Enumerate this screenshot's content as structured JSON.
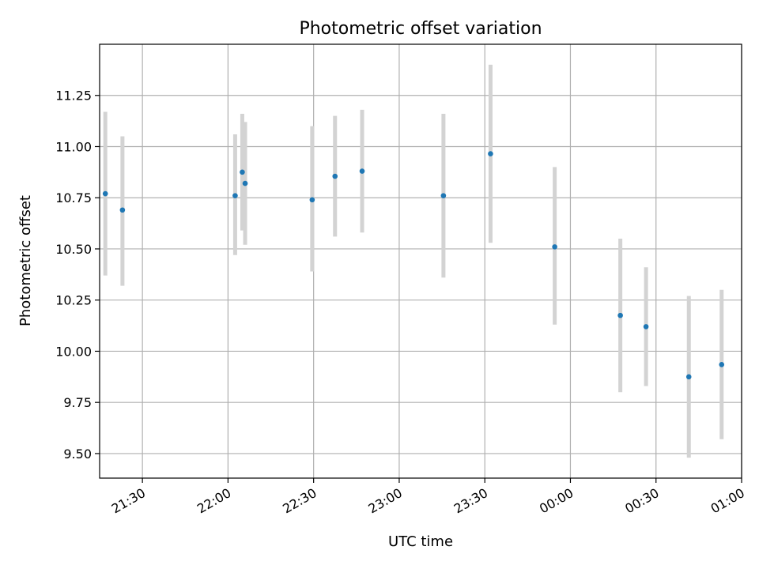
{
  "chart_data": {
    "type": "scatter",
    "title": "Photometric offset variation",
    "xlabel": "UTC time",
    "ylabel": "Photometric offset",
    "x_axis": "time",
    "xlim": [
      "2000-01-01T21:15:00",
      "2000-01-02T01:00:00"
    ],
    "ylim": [
      9.38,
      11.5
    ],
    "grid": true,
    "x_ticks": [
      {
        "value": "2000-01-01T21:30:00",
        "label": "21:30"
      },
      {
        "value": "2000-01-01T22:00:00",
        "label": "22:00"
      },
      {
        "value": "2000-01-01T22:30:00",
        "label": "22:30"
      },
      {
        "value": "2000-01-01T23:00:00",
        "label": "23:00"
      },
      {
        "value": "2000-01-01T23:30:00",
        "label": "23:30"
      },
      {
        "value": "2000-01-02T00:00:00",
        "label": "00:00"
      },
      {
        "value": "2000-01-02T00:30:00",
        "label": "00:30"
      },
      {
        "value": "2000-01-02T01:00:00",
        "label": "01:00"
      }
    ],
    "y_ticks": [
      {
        "value": 9.5,
        "label": "9.50"
      },
      {
        "value": 9.75,
        "label": "9.75"
      },
      {
        "value": 10.0,
        "label": "10.00"
      },
      {
        "value": 10.25,
        "label": "10.25"
      },
      {
        "value": 10.5,
        "label": "10.50"
      },
      {
        "value": 10.75,
        "label": "10.75"
      },
      {
        "value": 11.0,
        "label": "11.00"
      },
      {
        "value": 11.25,
        "label": "11.25"
      }
    ],
    "points": [
      {
        "x": "2000-01-01T21:17:00",
        "y": 10.77,
        "ylow": 10.37,
        "yhigh": 11.17
      },
      {
        "x": "2000-01-01T21:23:00",
        "y": 10.69,
        "ylow": 10.32,
        "yhigh": 11.05
      },
      {
        "x": "2000-01-01T22:02:30",
        "y": 10.76,
        "ylow": 10.47,
        "yhigh": 11.06
      },
      {
        "x": "2000-01-01T22:05:00",
        "y": 10.875,
        "ylow": 10.59,
        "yhigh": 11.16
      },
      {
        "x": "2000-01-01T22:06:00",
        "y": 10.82,
        "ylow": 10.52,
        "yhigh": 11.12
      },
      {
        "x": "2000-01-01T22:29:30",
        "y": 10.74,
        "ylow": 10.39,
        "yhigh": 11.1
      },
      {
        "x": "2000-01-01T22:37:30",
        "y": 10.855,
        "ylow": 10.56,
        "yhigh": 11.15
      },
      {
        "x": "2000-01-01T22:47:00",
        "y": 10.88,
        "ylow": 10.58,
        "yhigh": 11.18
      },
      {
        "x": "2000-01-01T23:15:30",
        "y": 10.76,
        "ylow": 10.36,
        "yhigh": 11.16
      },
      {
        "x": "2000-01-01T23:32:00",
        "y": 10.965,
        "ylow": 10.53,
        "yhigh": 11.4
      },
      {
        "x": "2000-01-01T23:54:30",
        "y": 10.51,
        "ylow": 10.13,
        "yhigh": 10.9
      },
      {
        "x": "2000-01-02T00:17:30",
        "y": 10.175,
        "ylow": 9.8,
        "yhigh": 10.55
      },
      {
        "x": "2000-01-02T00:26:30",
        "y": 10.12,
        "ylow": 9.83,
        "yhigh": 10.41
      },
      {
        "x": "2000-01-02T00:41:30",
        "y": 9.875,
        "ylow": 9.48,
        "yhigh": 10.27
      },
      {
        "x": "2000-01-02T00:53:00",
        "y": 9.935,
        "ylow": 9.57,
        "yhigh": 10.3
      }
    ],
    "colors": {
      "marker": "#1f77b4",
      "errorbar": "#d3d3d3",
      "grid": "#b0b0b0",
      "axes": "#000000"
    }
  }
}
